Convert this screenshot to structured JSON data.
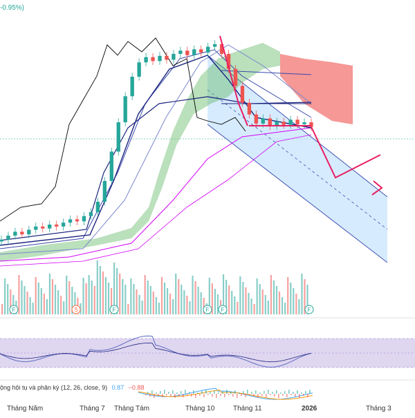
{
  "header": {
    "change_text": "-0.95%)"
  },
  "colors": {
    "up": "#26a69a",
    "down": "#ef5350",
    "price_line": "#000000",
    "ma_dark": "#1a237e",
    "ma_blue": "#3949ab",
    "ma_light": "#7986cb",
    "ma_magenta": "#d500f9",
    "cloud_green": "#66bb6a",
    "cloud_red": "#ef5350",
    "channel_fill": "#bbdefb",
    "channel_line": "#3f51b5",
    "projection": "#e91e63",
    "osc_band": "#d1c4e9",
    "osc_line": "#5c6bc0",
    "macd_line": "#42a5f5",
    "signal_line": "#ff9800"
  },
  "chart_data": {
    "type": "line",
    "title": "",
    "x_axis_labels": [
      "Tháng Năm",
      "Tháng 7",
      "Tháng Tám",
      "Tháng 10",
      "Tháng 11",
      "2026",
      "Tháng 3"
    ],
    "price_series_close": [
      30.0,
      30.6,
      31.2,
      30.8,
      31.5,
      32.0,
      31.7,
      32.3,
      32.0,
      32.6,
      33.1,
      32.8,
      33.6,
      34.2,
      35.8,
      39.0,
      43.5,
      48.0,
      52.0,
      55.0,
      57.2,
      58.0,
      57.4,
      58.2,
      57.6,
      58.5,
      59.0,
      58.3,
      59.2,
      58.7,
      59.6,
      60.0,
      58.5,
      56.2,
      53.6,
      51.0,
      49.2,
      47.8,
      48.6,
      47.4,
      48.1,
      47.6,
      48.4,
      47.7,
      48.0,
      47.3
    ],
    "projection_path": [
      {
        "x": 0,
        "y": 47.3
      },
      {
        "x": 1,
        "y": 39.5
      },
      {
        "x": 2,
        "y": 43.0
      }
    ],
    "events": [
      {
        "label": "F"
      },
      {
        "label": "S"
      },
      {
        "label": "F"
      },
      {
        "label": "F"
      },
      {
        "label": "F"
      },
      {
        "label": "F"
      }
    ],
    "oscillator": {
      "name": "",
      "band": [
        30,
        70
      ]
    },
    "macd": {
      "label": "ộng hội tụ và phân kỳ (12, 26, close, 9)",
      "values": [
        "0.87",
        "−0.88"
      ]
    },
    "grid": false,
    "legend": "none"
  }
}
